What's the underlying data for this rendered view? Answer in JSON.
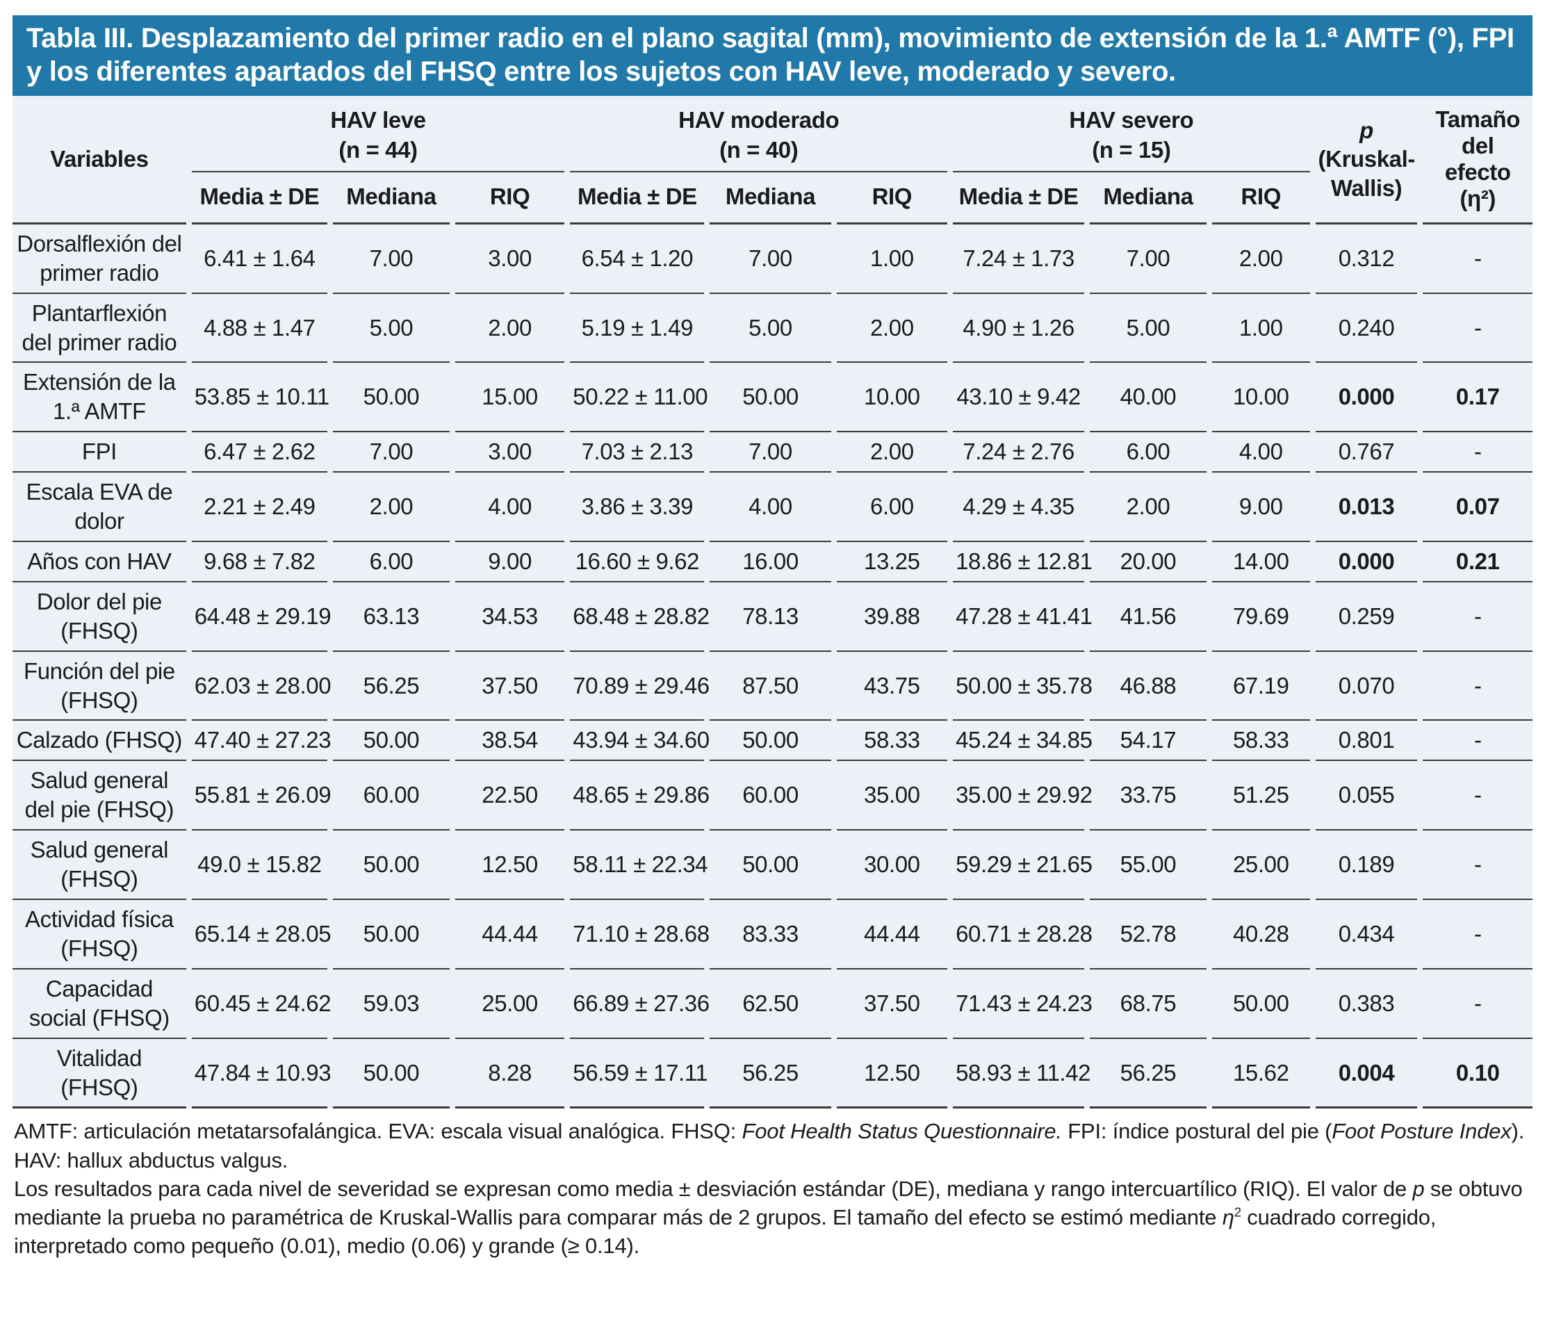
{
  "title": "Tabla III. Desplazamiento del primer radio en el plano sagital (mm), movimiento de extensión de la 1.ª AMTF (°), FPI y los diferentes apartados del FHSQ entre los sujetos con HAV leve, moderado y severo.",
  "colors": {
    "title_bar_bg": "#2079A8",
    "table_bg": "#ECF1F8",
    "rule_color": "#3A3A3A"
  },
  "header": {
    "variables_label": "Variables",
    "groups": [
      {
        "name": "HAV leve",
        "n": "(n = 44)"
      },
      {
        "name": "HAV moderado",
        "n": "(n = 40)"
      },
      {
        "name": "HAV severo",
        "n": "(n = 15)"
      }
    ],
    "subheaders": [
      "Media ± DE",
      "Mediana",
      "RIQ"
    ],
    "p_label": "p",
    "p_sub": "(Kruskal-Wallis)",
    "effect_label": "Tamaño del efecto (η²)"
  },
  "rows": [
    {
      "variable": "Dorsalflexión del primer radio",
      "values": [
        "6.41 ± 1.64",
        "7.00",
        "3.00",
        "6.54 ± 1.20",
        "7.00",
        "1.00",
        "7.24 ± 1.73",
        "7.00",
        "2.00"
      ],
      "p": "0.312",
      "effect": "-",
      "bold": false
    },
    {
      "variable": "Plantarflexión del primer radio",
      "values": [
        "4.88 ± 1.47",
        "5.00",
        "2.00",
        "5.19 ± 1.49",
        "5.00",
        "2.00",
        "4.90 ± 1.26",
        "5.00",
        "1.00"
      ],
      "p": "0.240",
      "effect": "-",
      "bold": false
    },
    {
      "variable": "Extensión de la 1.ª AMTF",
      "values": [
        "53.85 ± 10.11",
        "50.00",
        "15.00",
        "50.22 ± 11.00",
        "50.00",
        "10.00",
        "43.10 ± 9.42",
        "40.00",
        "10.00"
      ],
      "p": "0.000",
      "effect": "0.17",
      "bold": true
    },
    {
      "variable": "FPI",
      "values": [
        "6.47 ± 2.62",
        "7.00",
        "3.00",
        "7.03 ± 2.13",
        "7.00",
        "2.00",
        "7.24 ± 2.76",
        "6.00",
        "4.00"
      ],
      "p": "0.767",
      "effect": "-",
      "bold": false
    },
    {
      "variable": "Escala EVA de dolor",
      "values": [
        "2.21 ± 2.49",
        "2.00",
        "4.00",
        "3.86 ± 3.39",
        "4.00",
        "6.00",
        "4.29 ± 4.35",
        "2.00",
        "9.00"
      ],
      "p": "0.013",
      "effect": "0.07",
      "bold": true
    },
    {
      "variable": "Años con HAV",
      "values": [
        "9.68 ± 7.82",
        "6.00",
        "9.00",
        "16.60 ± 9.62",
        "16.00",
        "13.25",
        "18.86 ± 12.81",
        "20.00",
        "14.00"
      ],
      "p": "0.000",
      "effect": "0.21",
      "bold": true
    },
    {
      "variable": "Dolor del pie (FHSQ)",
      "values": [
        "64.48 ± 29.19",
        "63.13",
        "34.53",
        "68.48 ± 28.82",
        "78.13",
        "39.88",
        "47.28 ± 41.41",
        "41.56",
        "79.69"
      ],
      "p": "0.259",
      "effect": "-",
      "bold": false
    },
    {
      "variable": "Función del pie (FHSQ)",
      "values": [
        "62.03 ± 28.00",
        "56.25",
        "37.50",
        "70.89 ± 29.46",
        "87.50",
        "43.75",
        "50.00 ± 35.78",
        "46.88",
        "67.19"
      ],
      "p": "0.070",
      "effect": "-",
      "bold": false
    },
    {
      "variable": "Calzado (FHSQ)",
      "values": [
        "47.40 ± 27.23",
        "50.00",
        "38.54",
        "43.94 ± 34.60",
        "50.00",
        "58.33",
        "45.24 ± 34.85",
        "54.17",
        "58.33"
      ],
      "p": "0.801",
      "effect": "-",
      "bold": false
    },
    {
      "variable": "Salud general del pie (FHSQ)",
      "values": [
        "55.81 ± 26.09",
        "60.00",
        "22.50",
        "48.65 ± 29.86",
        "60.00",
        "35.00",
        "35.00 ± 29.92",
        "33.75",
        "51.25"
      ],
      "p": "0.055",
      "effect": "-",
      "bold": false
    },
    {
      "variable": "Salud general (FHSQ)",
      "values": [
        "49.0 ± 15.82",
        "50.00",
        "12.50",
        "58.11 ± 22.34",
        "50.00",
        "30.00",
        "59.29 ± 21.65",
        "55.00",
        "25.00"
      ],
      "p": "0.189",
      "effect": "-",
      "bold": false
    },
    {
      "variable": "Actividad física (FHSQ)",
      "values": [
        "65.14 ± 28.05",
        "50.00",
        "44.44",
        "71.10 ± 28.68",
        "83.33",
        "44.44",
        "60.71 ± 28.28",
        "52.78",
        "40.28"
      ],
      "p": "0.434",
      "effect": "-",
      "bold": false
    },
    {
      "variable": "Capacidad social (FHSQ)",
      "values": [
        "60.45 ± 24.62",
        "59.03",
        "25.00",
        "66.89 ± 27.36",
        "62.50",
        "37.50",
        "71.43 ± 24.23",
        "68.75",
        "50.00"
      ],
      "p": "0.383",
      "effect": "-",
      "bold": false
    },
    {
      "variable": "Vitalidad (FHSQ)",
      "values": [
        "47.84 ± 10.93",
        "50.00",
        "8.28",
        "56.59 ± 17.11",
        "56.25",
        "12.50",
        "58.93 ± 11.42",
        "56.25",
        "15.62"
      ],
      "p": "0.004",
      "effect": "0.10",
      "bold": true
    }
  ],
  "footnotes": [
    {
      "segments": [
        {
          "t": "AMTF: articulación metatarsofalángica. EVA: escala visual analógica. FHSQ: "
        },
        {
          "t": "Foot Health Status Questionnaire.",
          "s": "i"
        },
        {
          "t": " FPI: índice postural del pie ("
        },
        {
          "t": "Foot Posture Index",
          "s": "i"
        },
        {
          "t": "). HAV: hallux abductus valgus."
        }
      ]
    },
    {
      "segments": [
        {
          "t": "Los resultados para cada nivel de severidad se expresan como media ± desviación estándar (DE), mediana y rango intercuartílico (RIQ). El valor de "
        },
        {
          "t": "p",
          "s": "i"
        },
        {
          "t": " se obtuvo mediante la prueba no paramétrica de Kruskal-Wallis para comparar más de 2 grupos. El tamaño del efecto se estimó mediante "
        },
        {
          "t": "η",
          "s": "i"
        },
        {
          "t": "2",
          "s": "sup"
        },
        {
          "t": " cuadrado corregido, interpretado como pequeño (0.01), medio (0.06) y grande (≥ 0.14)."
        }
      ]
    }
  ]
}
